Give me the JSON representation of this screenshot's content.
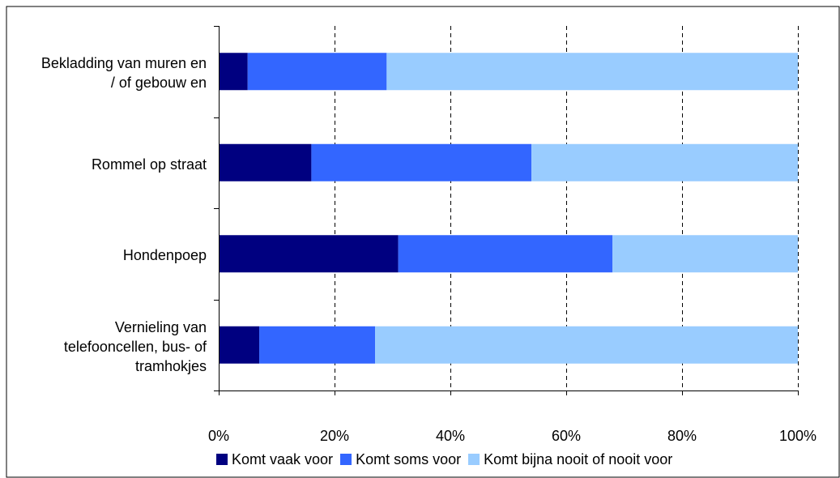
{
  "chart_data": {
    "type": "bar",
    "orientation": "horizontal",
    "stacked": true,
    "percent_stacked": true,
    "categories": [
      "Bekladding van muren en / of gebouw en",
      "Rommel op straat",
      "Hondenpoep",
      "Vernieling van telefooncellen, bus- of tramhokjes"
    ],
    "category_lines": [
      [
        "Bekladding van muren en",
        "/ of gebouw en"
      ],
      [
        "Rommel op straat"
      ],
      [
        "Hondenpoep"
      ],
      [
        "Vernieling van",
        "telefooncellen, bus- of",
        "tramhokjes"
      ]
    ],
    "series": [
      {
        "name": "Komt vaak voor",
        "color": "#000080",
        "values": [
          5,
          16,
          31,
          7
        ]
      },
      {
        "name": "Komt soms voor",
        "color": "#3366ff",
        "values": [
          24,
          38,
          37,
          20
        ]
      },
      {
        "name": "Komt bijna nooit of nooit voor",
        "color": "#99ccff",
        "values": [
          71,
          46,
          32,
          73
        ]
      }
    ],
    "xlim": [
      0,
      100
    ],
    "x_ticks": [
      "0%",
      "20%",
      "40%",
      "60%",
      "80%",
      "100%"
    ],
    "grid": "vertical dashed",
    "legend_position": "bottom",
    "title": "",
    "xlabel": "",
    "ylabel": ""
  }
}
